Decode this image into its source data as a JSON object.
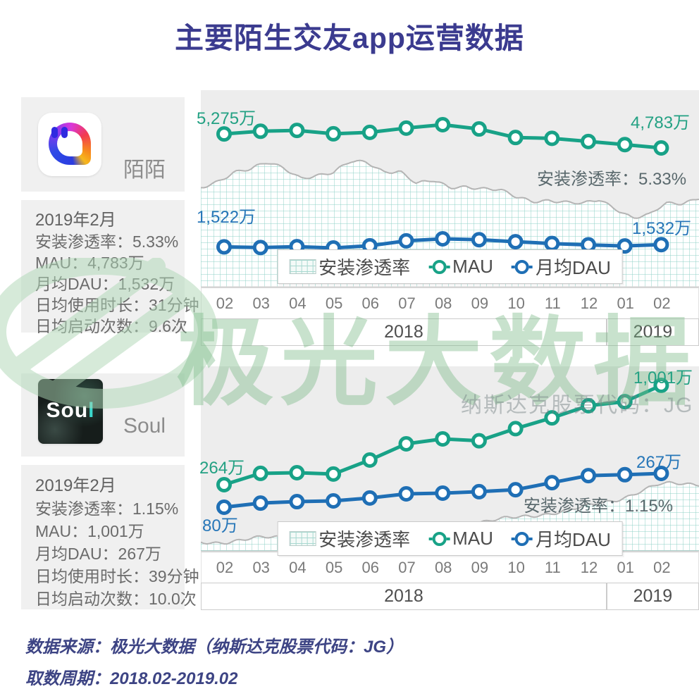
{
  "title": "主要陌生交友app运营数据",
  "watermark": {
    "logo": "jg-aurora-logo",
    "big_text": "极光大数据",
    "sub_text": "纳斯达克股票代码：JG"
  },
  "apps": [
    {
      "name": "陌陌",
      "logo": "momo-app-logo",
      "period": "2019年2月",
      "stats": [
        {
          "label": "安装渗透率",
          "value": "5.33%"
        },
        {
          "label": "MAU",
          "value": "4,783万"
        },
        {
          "label": "月均DAU",
          "value": "1,532万"
        },
        {
          "label": "日均使用时长",
          "value": "31分钟"
        },
        {
          "label": "日均启动次数",
          "value": "9.6次"
        }
      ]
    },
    {
      "name": "Soul",
      "logo": "soul-app-logo",
      "logo_text": "Soul",
      "period": "2019年2月",
      "stats": [
        {
          "label": "安装渗透率",
          "value": "1.15%"
        },
        {
          "label": "MAU",
          "value": "1,001万"
        },
        {
          "label": "月均DAU",
          "value": "267万"
        },
        {
          "label": "日均使用时长",
          "value": "39分钟"
        },
        {
          "label": "日均启动次数",
          "value": "10.0次"
        }
      ]
    }
  ],
  "chart_data": [
    {
      "type": "line",
      "app": "陌陌",
      "unit": "万",
      "x": [
        "02",
        "03",
        "04",
        "05",
        "06",
        "07",
        "08",
        "09",
        "10",
        "11",
        "12",
        "01",
        "02"
      ],
      "x_groups": [
        {
          "label": "2018",
          "months": 11
        },
        {
          "label": "2019",
          "months": 2
        }
      ],
      "grid": false,
      "legend_position": "bottom-center-overlay",
      "series": [
        {
          "name": "MAU",
          "type": "line",
          "color": "#18a287",
          "values": [
            5275,
            5370,
            5400,
            5280,
            5330,
            5480,
            5600,
            5450,
            5150,
            5120,
            5010,
            4900,
            4783
          ],
          "first_label": "5,275万",
          "last_label": "4,783万"
        },
        {
          "name": "月均DAU",
          "type": "line",
          "color": "#1f6fb5",
          "values": [
            1522,
            1519,
            1523,
            1517,
            1527,
            1549,
            1558,
            1554,
            1545,
            1537,
            1531,
            1526,
            1532
          ],
          "first_label": "1,522万",
          "last_label": "1,532万"
        },
        {
          "name": "安装渗透率",
          "type": "area",
          "annotation": "安装渗透率：5.33%",
          "latest_value": "5.33%",
          "profile_relative": [
            0.79,
            0.85,
            0.92,
            0.93,
            0.98,
            0.95,
            0.88,
            0.89,
            0.9,
            0.99,
            1.0,
            0.93,
            0.92,
            0.81,
            0.84,
            0.8,
            0.81,
            0.78,
            0.76,
            0.71,
            0.69,
            0.7,
            0.67,
            0.65,
            0.69,
            0.63,
            0.56,
            0.57,
            0.65,
            0.66,
            0.72
          ]
        }
      ],
      "legend": [
        {
          "label": "安装渗透率",
          "swatch": "grid-area"
        },
        {
          "label": "MAU",
          "swatch": "green-ring"
        },
        {
          "label": "月均DAU",
          "swatch": "blue-ring"
        }
      ]
    },
    {
      "type": "line",
      "app": "Soul",
      "unit": "万",
      "x": [
        "02",
        "03",
        "04",
        "05",
        "06",
        "07",
        "08",
        "09",
        "10",
        "11",
        "12",
        "01",
        "02"
      ],
      "x_groups": [
        {
          "label": "2018",
          "months": 11
        },
        {
          "label": "2019",
          "months": 2
        }
      ],
      "grid": false,
      "legend_position": "bottom-center-overlay",
      "series": [
        {
          "name": "MAU",
          "type": "line",
          "color": "#18a287",
          "values": [
            264,
            348,
            353,
            343,
            447,
            567,
            604,
            590,
            680,
            760,
            850,
            880,
            1001
          ],
          "first_label": "264万",
          "last_label": "1,001万"
        },
        {
          "name": "月均DAU",
          "type": "line",
          "color": "#1f6fb5",
          "values": [
            80,
            103,
            111,
            115,
            131,
            154,
            158,
            166,
            177,
            216,
            255,
            260,
            267
          ],
          "first_label": "80万",
          "last_label": "267万"
        },
        {
          "name": "安装渗透率",
          "type": "area",
          "annotation": "安装渗透率：1.15%",
          "latest_value": "1.15%",
          "profile_relative": [
            0.13,
            0.14,
            0.16,
            0.18,
            0.2,
            0.22,
            0.24,
            0.26,
            0.27,
            0.28,
            0.3,
            0.33,
            0.36,
            0.38,
            0.42,
            0.45,
            0.5,
            0.55,
            0.58,
            0.62,
            0.7,
            0.78,
            0.88,
            0.97,
            0.99,
            1.0
          ]
        }
      ],
      "legend": [
        {
          "label": "安装渗透率",
          "swatch": "grid-area"
        },
        {
          "label": "MAU",
          "swatch": "green-ring"
        },
        {
          "label": "月均DAU",
          "swatch": "blue-ring"
        }
      ]
    }
  ],
  "footer": {
    "source": "数据来源：极光大数据（纳斯达克股票代码：JG）",
    "period": "取数周期：2018.02-2019.02"
  },
  "colors": {
    "title": "#3b3b8f",
    "mau_line": "#18a287",
    "dau_line": "#1f6fb5",
    "area_grid": "#8fd2c7",
    "area_edge": "#b4b4b4",
    "watermark_green": "#7cba87",
    "footer_text": "#3d4484"
  }
}
